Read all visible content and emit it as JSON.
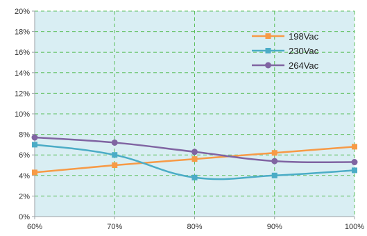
{
  "chart_data": {
    "type": "line",
    "x_categories": [
      "60%",
      "70%",
      "80%",
      "90%",
      "100%"
    ],
    "y_ticks": [
      "0%",
      "2%",
      "4%",
      "6%",
      "8%",
      "10%",
      "12%",
      "14%",
      "16%",
      "18%",
      "20%"
    ],
    "ylim": [
      0,
      20
    ],
    "grid": true,
    "legend_position": "top-right",
    "colors": {
      "plot_background": "#d9eef3",
      "grid": "#5cbf5c",
      "axis": "#9aa0a6"
    },
    "series": [
      {
        "name": "198Vac",
        "color": "#f79a46",
        "marker": "square",
        "values": [
          4.3,
          5.0,
          5.6,
          6.2,
          6.8
        ]
      },
      {
        "name": "230Vac",
        "color": "#4bacc6",
        "marker": "square",
        "values": [
          7.0,
          6.0,
          3.8,
          4.0,
          4.5
        ]
      },
      {
        "name": "264Vac",
        "color": "#8064a2",
        "marker": "circle",
        "values": [
          7.7,
          7.2,
          6.3,
          5.4,
          5.3
        ]
      }
    ]
  }
}
